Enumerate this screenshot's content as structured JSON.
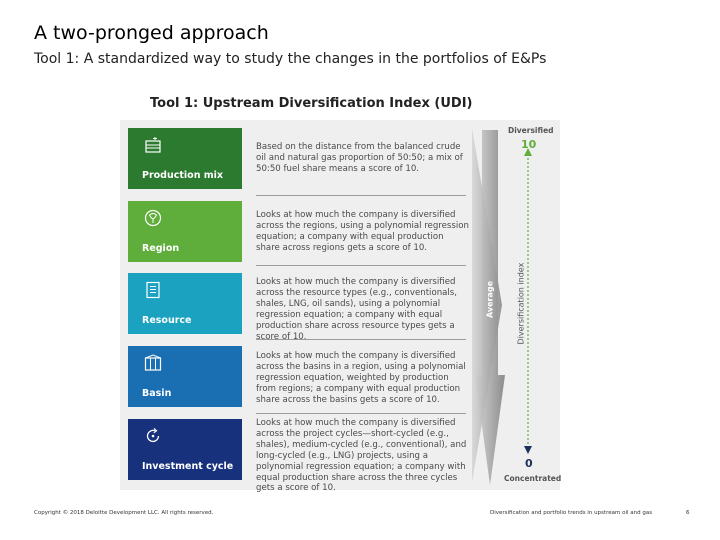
{
  "slide": {
    "title": "A two-pronged approach",
    "subtitle": "Tool 1: A standardized way to study the changes in the portfolios of E&Ps",
    "figure_caption": "Tool 1: Upstream Diversification Index (UDI)"
  },
  "figure": {
    "rows": [
      {
        "label": "Production mix",
        "icon": "oil-barrel-icon",
        "color": "#2b7a2f",
        "description": "Based on the distance from the balanced crude oil and natural gas proportion of 50:50; a mix of 50:50 fuel share means a score of 10."
      },
      {
        "label": "Region",
        "icon": "globe-icon",
        "color": "#5fae3c",
        "description": "Looks at how much the company is diversified across the regions, using a polynomial regression equation; a company with equal production share across regions gets a score of 10."
      },
      {
        "label": "Resource",
        "icon": "document-icon",
        "color": "#1aa2c0",
        "description": "Looks at how much the company is diversified across the resource types (e.g., conventionals, shales, LNG, oil sands), using a polynomial regression equation; a company with equal production share across resource types gets a score of 10."
      },
      {
        "label": "Basin",
        "icon": "basin-icon",
        "color": "#1a6fb3",
        "description": "Looks at how much the company is diversified across the basins in a region, using a polynomial regression equation, weighted by production from regions; a company with equal production share across the basins gets a score of 10."
      },
      {
        "label": "Investment cycle",
        "icon": "cycle-icon",
        "color": "#17317c",
        "description": "Looks at how much the company is diversified across the project cycles—short-cycled (e.g., shales), medium-cycled (e.g., conventional), and long-cycled (e.g., LNG) projects, using a polynomial regression equation; a company with equal production share across the three cycles gets a score of 10."
      }
    ],
    "arrow_label": "Average",
    "scale": {
      "top_label": "Diversified",
      "top_value": "10",
      "bottom_label": "Concentrated",
      "bottom_value": "0",
      "axis_label": "Diversification index",
      "color_top": "#5fae3c",
      "color_bottom": "#1f2f5c"
    }
  },
  "footer": {
    "copyright": "Copyright © 2018 Deloitte Development LLC. All rights reserved.",
    "doc_title": "Diversification and portfolio trends in upstream oil and gas",
    "page_number": "6"
  }
}
